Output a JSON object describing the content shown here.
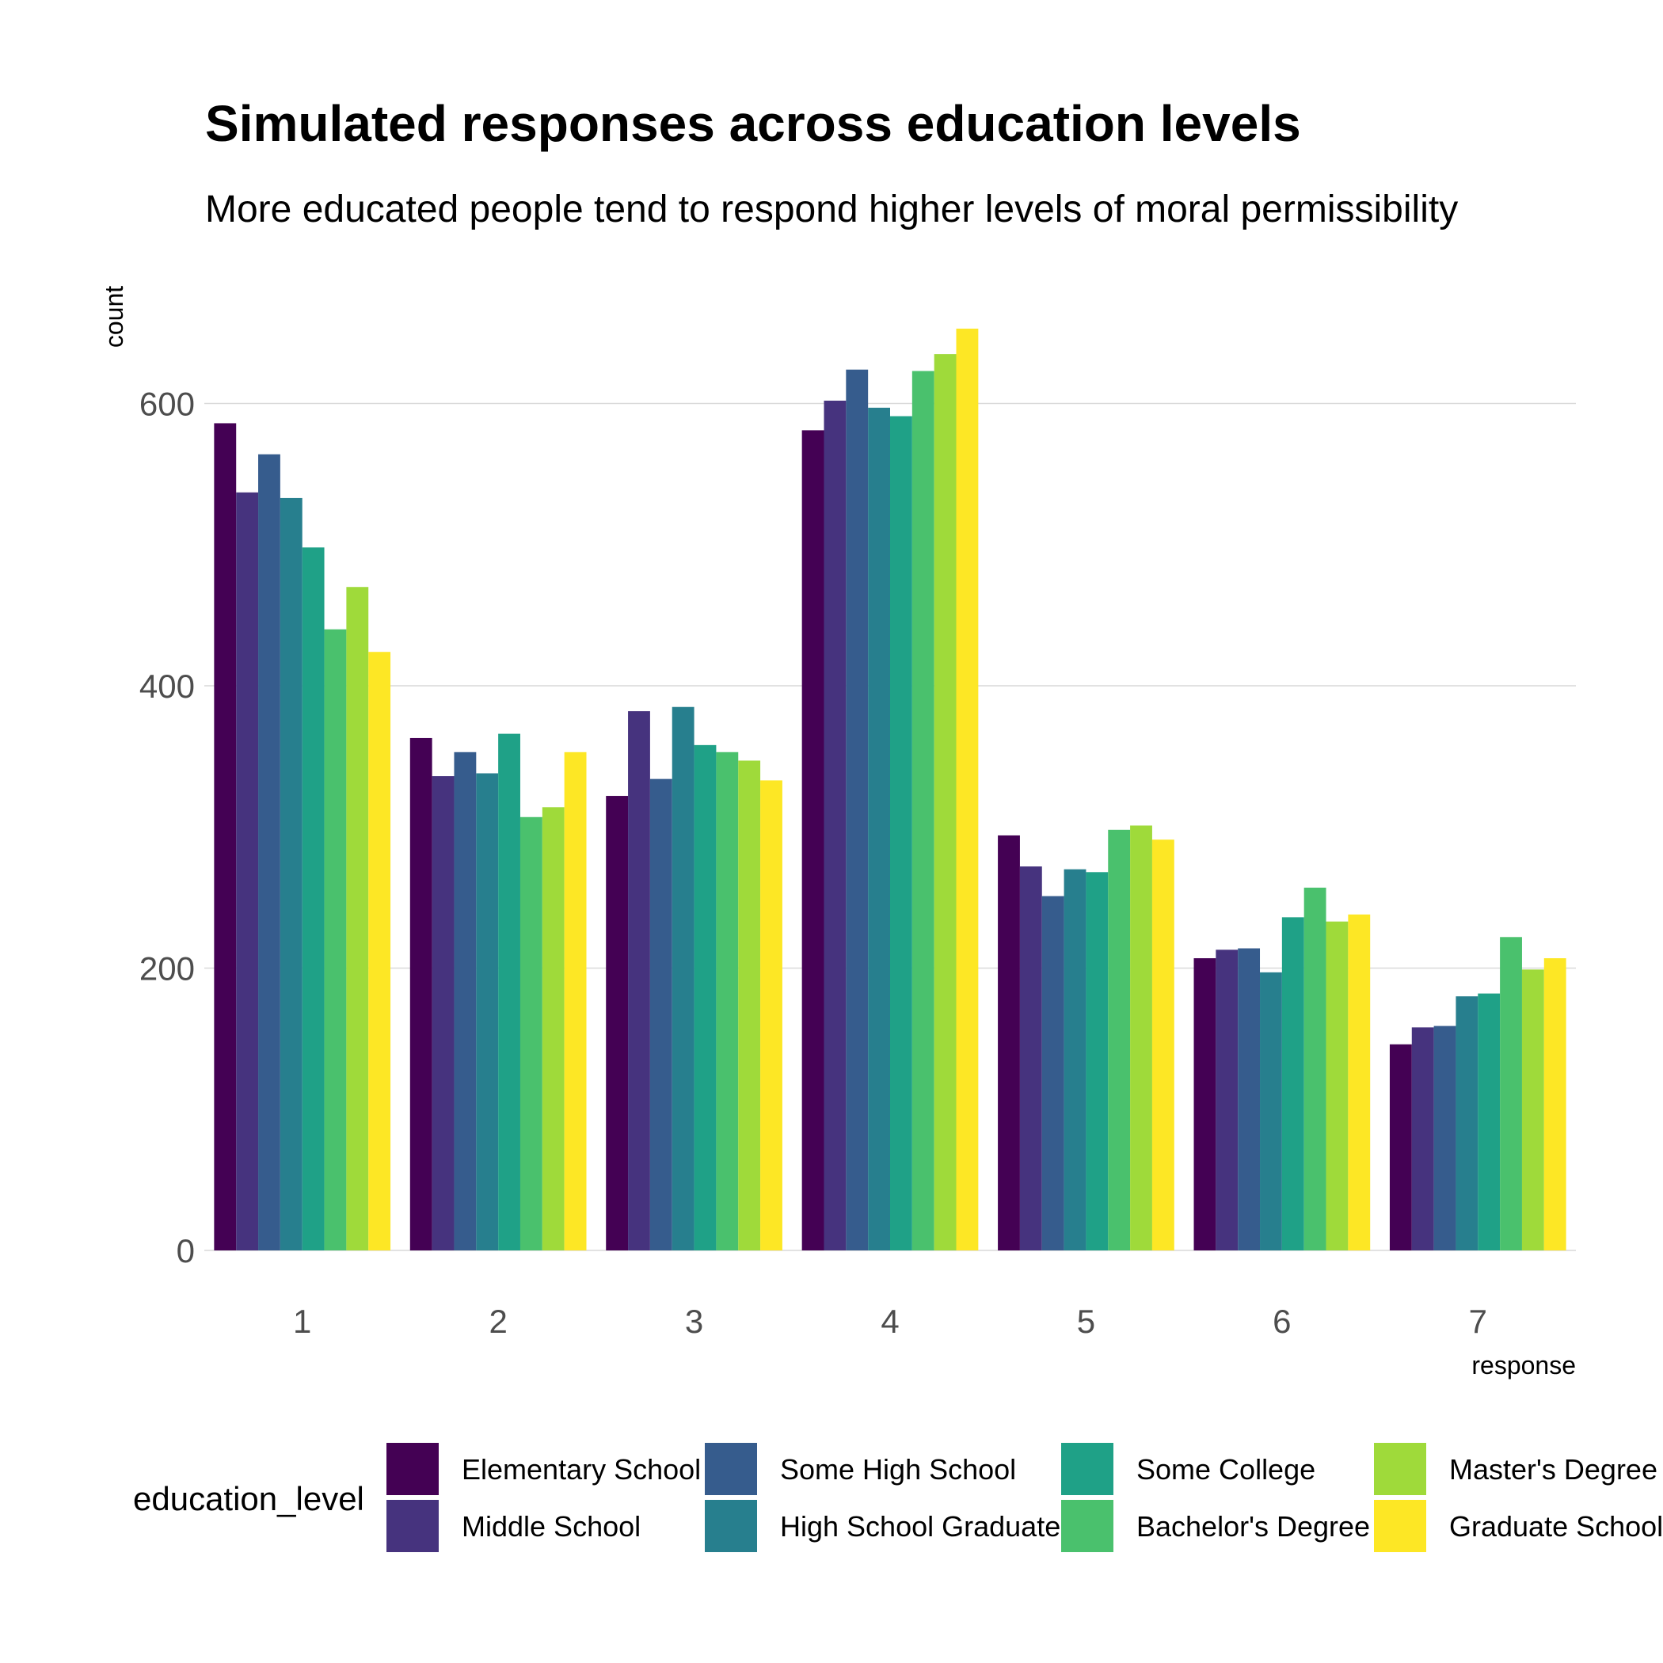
{
  "chart_data": {
    "type": "bar",
    "title": "Simulated responses across education levels",
    "subtitle": "More educated people tend to respond higher levels of moral permissibility",
    "xlabel": "response",
    "ylabel": "count",
    "categories": [
      "1",
      "2",
      "3",
      "4",
      "5",
      "6",
      "7"
    ],
    "ylim": [
      0,
      680
    ],
    "yticks": [
      0,
      200,
      400,
      600
    ],
    "grid": true,
    "legend_position": "bottom",
    "legend_title": "education_level",
    "series": [
      {
        "name": "Elementary School",
        "color": "#440154",
        "values": [
          586,
          363,
          322,
          581,
          294,
          207,
          146
        ]
      },
      {
        "name": "Middle School",
        "color": "#46337E",
        "values": [
          537,
          336,
          382,
          602,
          272,
          213,
          158
        ]
      },
      {
        "name": "Some High School",
        "color": "#365C8D",
        "values": [
          564,
          353,
          334,
          624,
          251,
          214,
          159
        ]
      },
      {
        "name": "High School Graduate",
        "color": "#277F8E",
        "values": [
          533,
          338,
          385,
          597,
          270,
          197,
          180
        ]
      },
      {
        "name": "Some College",
        "color": "#1FA187",
        "values": [
          498,
          366,
          358,
          591,
          268,
          236,
          182
        ]
      },
      {
        "name": "Bachelor's Degree",
        "color": "#4AC16D",
        "values": [
          440,
          307,
          353,
          623,
          298,
          257,
          222
        ]
      },
      {
        "name": "Master's Degree",
        "color": "#9FDA3A",
        "values": [
          470,
          314,
          347,
          635,
          301,
          233,
          199
        ]
      },
      {
        "name": "Graduate School",
        "color": "#FDE725",
        "values": [
          424,
          353,
          333,
          653,
          291,
          238,
          207
        ]
      }
    ]
  }
}
